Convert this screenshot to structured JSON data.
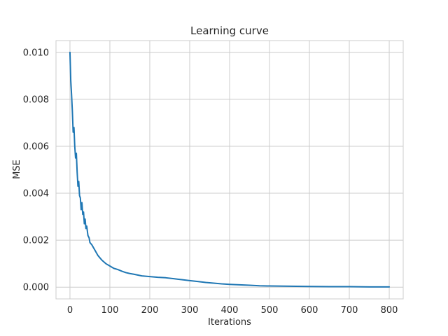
{
  "chart_data": {
    "type": "line",
    "title": "Learning curve",
    "xlabel": "Iterations",
    "ylabel": "MSE",
    "xlim": [
      -35,
      835
    ],
    "ylim": [
      -0.0005,
      0.0105
    ],
    "grid": true,
    "x_ticks": [
      0,
      100,
      200,
      300,
      400,
      500,
      600,
      700,
      800
    ],
    "x_tick_labels": [
      "0",
      "100",
      "200",
      "300",
      "400",
      "500",
      "600",
      "700",
      "800"
    ],
    "y_ticks": [
      0.0,
      0.002,
      0.004,
      0.006,
      0.008,
      0.01
    ],
    "y_tick_labels": [
      "0.000",
      "0.002",
      "0.004",
      "0.006",
      "0.008",
      "0.010"
    ],
    "series": [
      {
        "name": "MSE",
        "color": "#1f77b4",
        "x": [
          0,
          2,
          4,
          6,
          8,
          10,
          12,
          14,
          16,
          18,
          20,
          22,
          24,
          26,
          28,
          30,
          32,
          34,
          36,
          38,
          40,
          42,
          45,
          48,
          50,
          55,
          60,
          65,
          70,
          75,
          80,
          90,
          100,
          110,
          120,
          130,
          140,
          150,
          160,
          180,
          200,
          220,
          240,
          260,
          280,
          300,
          320,
          340,
          360,
          380,
          400,
          425,
          450,
          475,
          500,
          550,
          600,
          650,
          700,
          750,
          800
        ],
        "values": [
          0.01,
          0.0088,
          0.0082,
          0.0075,
          0.0066,
          0.0068,
          0.006,
          0.0055,
          0.0057,
          0.0049,
          0.0043,
          0.0045,
          0.0039,
          0.0038,
          0.0033,
          0.0036,
          0.0031,
          0.0032,
          0.0027,
          0.0029,
          0.0025,
          0.0026,
          0.0022,
          0.0021,
          0.0019,
          0.0018,
          0.00165,
          0.0015,
          0.00135,
          0.00125,
          0.00115,
          0.001,
          0.0009,
          0.0008,
          0.00075,
          0.00068,
          0.00062,
          0.00058,
          0.00055,
          0.00048,
          0.00045,
          0.00042,
          0.0004,
          0.00036,
          0.00032,
          0.00028,
          0.00024,
          0.0002,
          0.00017,
          0.00014,
          0.00012,
          0.0001,
          8e-05,
          6e-05,
          5e-05,
          4e-05,
          3e-05,
          2e-05,
          2e-05,
          1e-05,
          1e-05
        ]
      }
    ]
  }
}
